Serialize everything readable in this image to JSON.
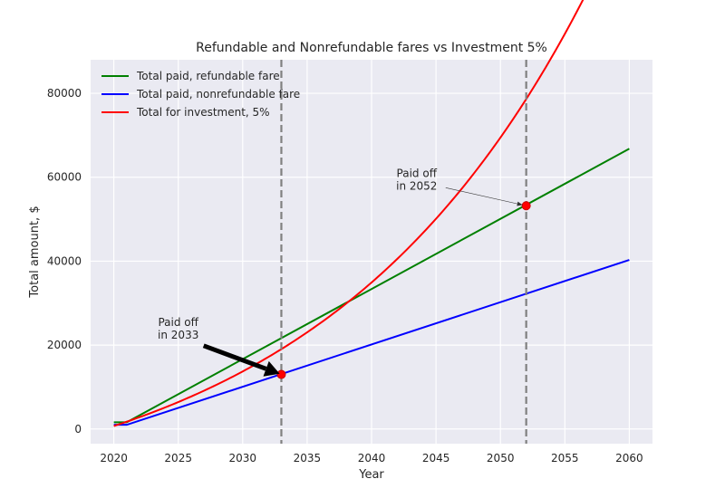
{
  "chart_data": {
    "type": "line",
    "title": "Refundable and Nonrefundable fares vs Investment 5%",
    "xlabel": "Year",
    "ylabel": "Total amount, $",
    "xlim": [
      2018.2,
      2061.8
    ],
    "ylim": [
      -3500,
      88000
    ],
    "xticks": [
      2020,
      2025,
      2030,
      2035,
      2040,
      2045,
      2050,
      2055,
      2060
    ],
    "yticks": [
      0,
      20000,
      40000,
      60000,
      80000
    ],
    "grid": true,
    "legend_position": "upper-left",
    "series": [
      {
        "name": "Total paid, refundable fare",
        "color": "#008000",
        "x": [
          2020,
          2021,
          2060
        ],
        "y": [
          1600,
          1600,
          66800
        ]
      },
      {
        "name": "Total paid, nonrefundable fare",
        "color": "#0000ff",
        "x": [
          2020,
          2021,
          2060
        ],
        "y": [
          1000,
          1000,
          40300
        ]
      },
      {
        "name": "Total for investment, 5%",
        "color": "#ff0000",
        "curve": "compound",
        "x_start": 2020,
        "x_end": 2060,
        "y_start": 700,
        "annual_contribution": 1000,
        "rate": 0.05
      }
    ],
    "vlines": [
      {
        "x": 2033,
        "color": "#808080",
        "style": "dashed"
      },
      {
        "x": 2052,
        "color": "#808080",
        "style": "dashed"
      }
    ],
    "markers": [
      {
        "x": 2033,
        "y": 13000,
        "color": "#ff0000"
      },
      {
        "x": 2052,
        "y": 53200,
        "color": "#ff0000"
      }
    ],
    "annotations": [
      {
        "lines": [
          "Paid off",
          "in 2033"
        ],
        "text_x": 2025,
        "text_y": 22000,
        "target_x": 2033,
        "target_y": 13000,
        "arrow": "thick"
      },
      {
        "lines": [
          "Paid off",
          "in 2052"
        ],
        "text_x": 2043.5,
        "text_y": 57500,
        "target_x": 2052,
        "target_y": 53200,
        "arrow": "thin"
      }
    ]
  }
}
